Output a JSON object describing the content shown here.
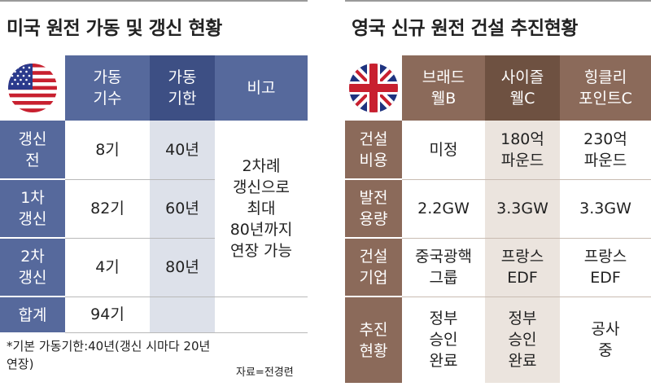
{
  "left": {
    "title": "미국 원전 가동 및 갱신 현황",
    "headers": [
      [
        "가동",
        "기수"
      ],
      [
        "가동",
        "기한"
      ],
      [
        "비고"
      ]
    ],
    "rows": [
      {
        "label": [
          "갱신",
          "전"
        ],
        "count": "8기",
        "limit": "40년"
      },
      {
        "label": [
          "1차",
          "갱신"
        ],
        "count": "82기",
        "limit": "60년"
      },
      {
        "label": [
          "2차",
          "갱신"
        ],
        "count": "4기",
        "limit": "80년"
      }
    ],
    "note": [
      "2차례",
      "갱신으로",
      "최대",
      "80년까지",
      "연장 가능"
    ],
    "total": {
      "label": "합계",
      "count": "94기"
    },
    "footnote": [
      "*기본 가동기한:40년(갱신 시마다 20년",
      "연장)"
    ],
    "source": "자료=전경련",
    "flag": "us-flag"
  },
  "right": {
    "title": "영국 신규 원전 건설 추진현황",
    "flag": "uk-flag",
    "headers": [
      [
        "브래드",
        "웰B"
      ],
      [
        "사이즐",
        "웰C"
      ],
      [
        "힝클리",
        "포인트C"
      ]
    ],
    "rows": [
      {
        "label": [
          "건설",
          "비용"
        ],
        "cells": [
          [
            "미정"
          ],
          [
            "180억",
            "파운드"
          ],
          [
            "230억",
            "파운드"
          ]
        ]
      },
      {
        "label": [
          "발전",
          "용량"
        ],
        "cells": [
          [
            "2.2GW"
          ],
          [
            "3.3GW"
          ],
          [
            "3.3GW"
          ]
        ]
      },
      {
        "label": [
          "건설",
          "기업"
        ],
        "cells": [
          [
            "중국광핵",
            "그룹"
          ],
          [
            "프랑스",
            "EDF"
          ],
          [
            "프랑스",
            "EDF"
          ]
        ]
      },
      {
        "label": [
          "추진",
          "현황"
        ],
        "cells": [
          [
            "정부",
            "승인",
            "완료"
          ],
          [
            "정부",
            "승인",
            "완료"
          ],
          [
            "공사",
            "중"
          ]
        ]
      }
    ]
  }
}
